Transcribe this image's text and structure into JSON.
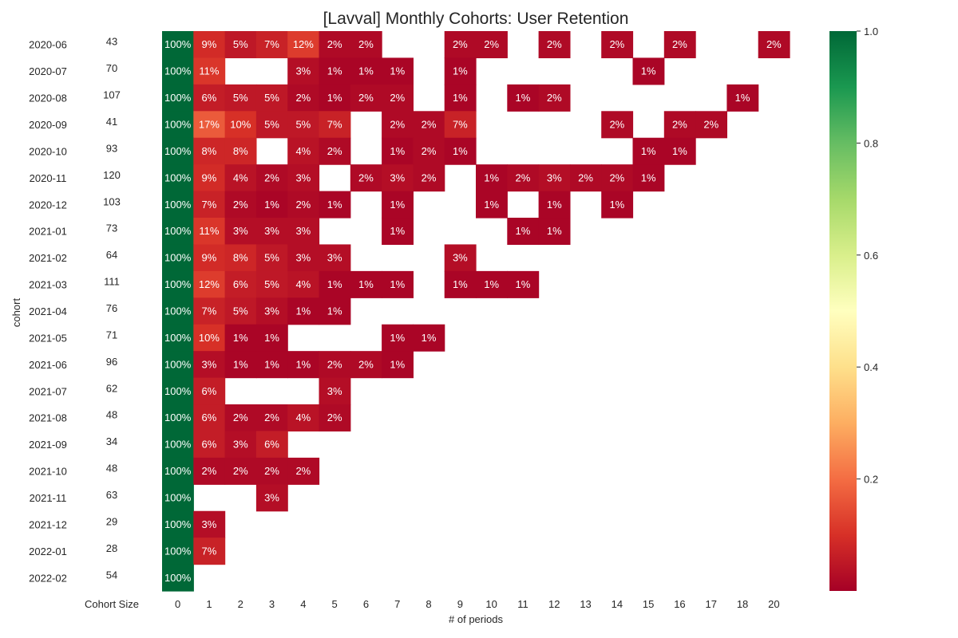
{
  "chart_data": {
    "type": "heatmap",
    "title": "[Lavval] Monthly Cohorts: User Retention",
    "xlabel": "# of periods",
    "ylabel": "cohort",
    "size_column_label": "Cohort Size",
    "periods": [
      "0",
      "1",
      "2",
      "3",
      "4",
      "5",
      "6",
      "7",
      "8",
      "9",
      "10",
      "11",
      "12",
      "13",
      "14",
      "15",
      "16",
      "17",
      "18",
      "20"
    ],
    "cohorts": [
      "2020-06",
      "2020-07",
      "2020-08",
      "2020-09",
      "2020-10",
      "2020-11",
      "2020-12",
      "2021-01",
      "2021-02",
      "2021-03",
      "2021-04",
      "2021-05",
      "2021-06",
      "2021-07",
      "2021-08",
      "2021-09",
      "2021-10",
      "2021-11",
      "2021-12",
      "2022-01",
      "2022-02"
    ],
    "cohort_sizes": [
      43,
      70,
      107,
      41,
      93,
      120,
      103,
      73,
      64,
      111,
      76,
      71,
      96,
      62,
      48,
      34,
      48,
      63,
      29,
      28,
      54
    ],
    "values": [
      [
        1.0,
        0.09,
        0.05,
        0.07,
        0.12,
        0.02,
        0.02,
        null,
        null,
        0.02,
        0.02,
        null,
        0.02,
        null,
        0.02,
        null,
        0.02,
        null,
        null,
        0.02
      ],
      [
        1.0,
        0.11,
        null,
        null,
        0.03,
        0.01,
        0.01,
        0.01,
        null,
        0.01,
        null,
        null,
        null,
        null,
        null,
        0.01,
        null,
        null,
        null,
        null
      ],
      [
        1.0,
        0.06,
        0.05,
        0.05,
        0.02,
        0.01,
        0.02,
        0.02,
        null,
        0.01,
        null,
        0.01,
        0.02,
        null,
        null,
        null,
        null,
        null,
        0.01,
        null
      ],
      [
        1.0,
        0.17,
        0.1,
        0.05,
        0.05,
        0.07,
        null,
        0.02,
        0.02,
        0.07,
        null,
        null,
        null,
        null,
        0.02,
        null,
        0.02,
        0.02,
        null,
        null
      ],
      [
        1.0,
        0.08,
        0.08,
        null,
        0.04,
        0.02,
        null,
        0.01,
        0.02,
        0.01,
        null,
        null,
        null,
        null,
        null,
        0.01,
        0.01,
        null,
        null,
        null
      ],
      [
        1.0,
        0.09,
        0.04,
        0.02,
        0.03,
        null,
        0.02,
        0.03,
        0.02,
        null,
        0.01,
        0.02,
        0.03,
        0.02,
        0.02,
        0.01,
        null,
        null,
        null,
        null
      ],
      [
        1.0,
        0.07,
        0.02,
        0.01,
        0.02,
        0.01,
        null,
        0.01,
        null,
        null,
        0.01,
        null,
        0.01,
        null,
        0.01,
        null,
        null,
        null,
        null,
        null
      ],
      [
        1.0,
        0.11,
        0.03,
        0.03,
        0.03,
        null,
        null,
        0.01,
        null,
        null,
        null,
        0.01,
        0.01,
        null,
        null,
        null,
        null,
        null,
        null,
        null
      ],
      [
        1.0,
        0.09,
        0.08,
        0.05,
        0.03,
        0.03,
        null,
        null,
        null,
        0.03,
        null,
        null,
        null,
        null,
        null,
        null,
        null,
        null,
        null,
        null
      ],
      [
        1.0,
        0.12,
        0.06,
        0.05,
        0.04,
        0.01,
        0.01,
        0.01,
        null,
        0.01,
        0.01,
        0.01,
        null,
        null,
        null,
        null,
        null,
        null,
        null,
        null
      ],
      [
        1.0,
        0.07,
        0.05,
        0.03,
        0.01,
        0.01,
        null,
        null,
        null,
        null,
        null,
        null,
        null,
        null,
        null,
        null,
        null,
        null,
        null,
        null
      ],
      [
        1.0,
        0.1,
        0.01,
        0.01,
        null,
        null,
        null,
        0.01,
        0.01,
        null,
        null,
        null,
        null,
        null,
        null,
        null,
        null,
        null,
        null,
        null
      ],
      [
        1.0,
        0.03,
        0.01,
        0.01,
        0.01,
        0.02,
        0.02,
        0.01,
        null,
        null,
        null,
        null,
        null,
        null,
        null,
        null,
        null,
        null,
        null,
        null
      ],
      [
        1.0,
        0.06,
        null,
        null,
        null,
        0.03,
        null,
        null,
        null,
        null,
        null,
        null,
        null,
        null,
        null,
        null,
        null,
        null,
        null,
        null
      ],
      [
        1.0,
        0.06,
        0.02,
        0.02,
        0.04,
        0.02,
        null,
        null,
        null,
        null,
        null,
        null,
        null,
        null,
        null,
        null,
        null,
        null,
        null,
        null
      ],
      [
        1.0,
        0.06,
        0.03,
        0.06,
        null,
        null,
        null,
        null,
        null,
        null,
        null,
        null,
        null,
        null,
        null,
        null,
        null,
        null,
        null,
        null
      ],
      [
        1.0,
        0.02,
        0.02,
        0.02,
        0.02,
        null,
        null,
        null,
        null,
        null,
        null,
        null,
        null,
        null,
        null,
        null,
        null,
        null,
        null,
        null
      ],
      [
        1.0,
        null,
        null,
        0.03,
        null,
        null,
        null,
        null,
        null,
        null,
        null,
        null,
        null,
        null,
        null,
        null,
        null,
        null,
        null,
        null
      ],
      [
        1.0,
        0.03,
        null,
        null,
        null,
        null,
        null,
        null,
        null,
        null,
        null,
        null,
        null,
        null,
        null,
        null,
        null,
        null,
        null,
        null
      ],
      [
        1.0,
        0.07,
        null,
        null,
        null,
        null,
        null,
        null,
        null,
        null,
        null,
        null,
        null,
        null,
        null,
        null,
        null,
        null,
        null,
        null
      ],
      [
        1.0,
        null,
        null,
        null,
        null,
        null,
        null,
        null,
        null,
        null,
        null,
        null,
        null,
        null,
        null,
        null,
        null,
        null,
        null,
        null
      ]
    ],
    "value_format": "percent",
    "colormap": "RdYlGn",
    "colorbar": {
      "min": 0.0,
      "max": 1.0,
      "ticks": [
        "0.2",
        "0.4",
        "0.6",
        "0.8",
        "1.0"
      ],
      "tick_values": [
        0.2,
        0.4,
        0.6,
        0.8,
        1.0
      ]
    },
    "grid": false
  }
}
